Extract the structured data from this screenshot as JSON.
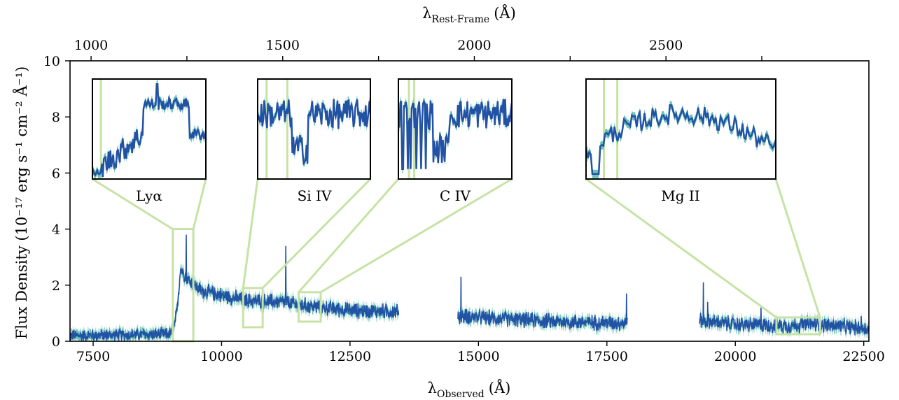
{
  "chart_data": {
    "type": "line",
    "xlabel": {
      "symbol": "λ",
      "subscript": "Observed",
      "unit": "(Å)"
    },
    "xlabel_top": {
      "symbol": "λ",
      "subscript": "Rest-Frame",
      "unit": "(Å)"
    },
    "ylabel": "Flux Density (10⁻¹⁷ erg s⁻¹ cm⁻² Å⁻¹)",
    "xlim": [
      7050,
      22600
    ],
    "ylim": [
      0,
      10
    ],
    "xticks": [
      7500,
      10000,
      12500,
      15000,
      17500,
      20000,
      22500
    ],
    "yticks": [
      0,
      2,
      4,
      6,
      8,
      10
    ],
    "top_ticks": [
      1000,
      1500,
      2000,
      2500
    ],
    "top_minor_ticks": [
      1250,
      1750,
      2250,
      2750
    ],
    "redshift": 6.46,
    "colors": {
      "flux": "#2152a4",
      "error_band": "#6cc3b6",
      "highlight": "#c6e3a6"
    },
    "segments": [
      {
        "range": [
          7050,
          13450
        ],
        "shape": [
          [
            7050,
            0.3
          ],
          [
            8900,
            0.35
          ],
          [
            9050,
            0.4
          ],
          [
            9130,
            1.0
          ],
          [
            9200,
            2.6
          ],
          [
            9350,
            2.2
          ],
          [
            9600,
            1.8
          ],
          [
            10500,
            1.45
          ],
          [
            11200,
            1.4
          ],
          [
            11500,
            1.3
          ],
          [
            12500,
            1.1
          ],
          [
            13450,
            1.05
          ]
        ]
      },
      {
        "range": [
          14600,
          17900
        ],
        "shape": [
          [
            14600,
            0.9
          ],
          [
            15500,
            0.8
          ],
          [
            16500,
            0.7
          ],
          [
            17900,
            0.65
          ]
        ]
      },
      {
        "range": [
          19300,
          22600
        ],
        "shape": [
          [
            19300,
            0.75
          ],
          [
            20000,
            0.6
          ],
          [
            21000,
            0.55
          ],
          [
            21500,
            0.62
          ],
          [
            22600,
            0.45
          ]
        ]
      }
    ],
    "spikes": [
      [
        9310,
        3.8
      ],
      [
        11250,
        3.4
      ],
      [
        14660,
        2.3
      ],
      [
        17880,
        1.7
      ],
      [
        19380,
        2.1
      ],
      [
        19460,
        1.4
      ],
      [
        20500,
        1.2
      ],
      [
        22450,
        0.9
      ]
    ],
    "insets": [
      {
        "label": "Lyα",
        "window": [
          9050,
          9450
        ],
        "window_y": [
          0,
          4.0
        ],
        "lines": [
          9080
        ]
      },
      {
        "label": "Si IV",
        "window": [
          10420,
          10800
        ],
        "window_y": [
          0.5,
          1.9
        ],
        "lines": [
          10450,
          10520
        ]
      },
      {
        "label": "C IV",
        "window": [
          11500,
          11930
        ],
        "window_y": [
          0.7,
          1.75
        ],
        "lines": [
          11540,
          11560
        ]
      },
      {
        "label": "Mg II",
        "window": [
          20800,
          21650
        ],
        "window_y": [
          0.25,
          0.85
        ],
        "lines": [
          20880,
          20940
        ]
      }
    ]
  }
}
